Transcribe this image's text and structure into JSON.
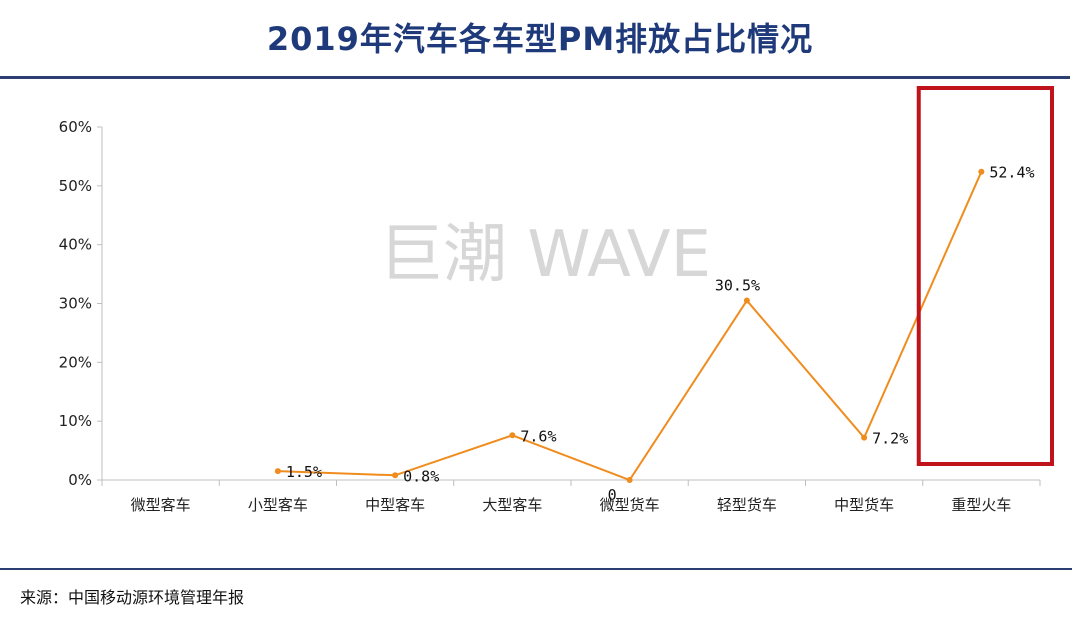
{
  "title": "2019年汽车各车型PM排放占比情况",
  "watermark": "巨潮 WAVE",
  "source": "来源：中国移动源环境管理年报",
  "colors": {
    "line": "#f08c1e",
    "highlight_box": "#c0121a",
    "title": "#1f3a7a",
    "rules": "#2b3f73"
  },
  "chart_data": {
    "type": "line",
    "title": "2019年汽车各车型PM排放占比情况",
    "xlabel": "",
    "ylabel": "",
    "ylim": [
      0,
      60
    ],
    "yticks": [
      "0%",
      "10%",
      "20%",
      "30%",
      "40%",
      "50%",
      "60%"
    ],
    "categories": [
      "微型客车",
      "小型客车",
      "中型客车",
      "大型客车",
      "微型货车",
      "轻型货车",
      "中型货车",
      "重型火车"
    ],
    "series": [
      {
        "values": [
          null,
          1.5,
          0.8,
          7.6,
          0,
          30.5,
          7.2,
          52.4
        ],
        "labels": [
          "",
          "1.5%",
          "0.8%",
          "7.6%",
          "0",
          "30.5%",
          "7.2%",
          "52.4%"
        ]
      }
    ],
    "highlight_category": "重型火车",
    "grid": false
  }
}
